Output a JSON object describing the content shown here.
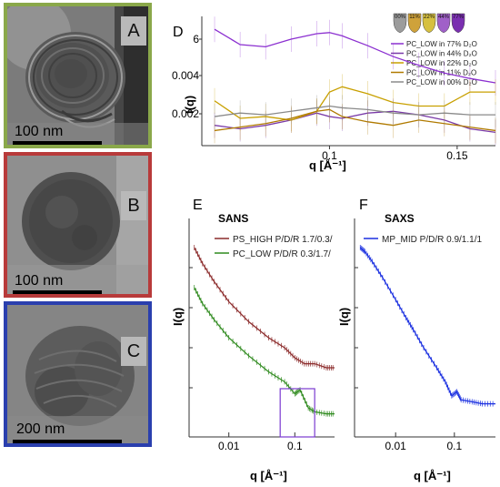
{
  "panels": {
    "A": {
      "letter": "A",
      "scale": "100 nm",
      "border_color": "#8aa84a"
    },
    "B": {
      "letter": "B",
      "scale": "100 nm",
      "border_color": "#b83a3a"
    },
    "C": {
      "letter": "C",
      "scale": "200 nm",
      "border_color": "#2a3fae"
    }
  },
  "figure_letters": {
    "D": "D",
    "E": "E",
    "F": "F"
  },
  "plot_text": {
    "D_ylabel": "I(q)",
    "D_xlabel": "q [Å⁻¹]",
    "E_title": "SANS",
    "F_title": "SAXS",
    "E_ylabel": "I(q)",
    "F_ylabel": "I(q)",
    "E_xlabel": "q [Å⁻¹]",
    "F_xlabel": "q [Å⁻¹]"
  },
  "chart_data": [
    {
      "id": "D",
      "type": "line",
      "x": [
        0.055,
        0.065,
        0.075,
        0.085,
        0.095,
        0.1,
        0.105,
        0.115,
        0.125,
        0.135,
        0.145,
        0.155,
        0.165
      ],
      "xticks": [
        0.1,
        0.15
      ],
      "yticks_labels": [
        "0.002",
        "0.004",
        "6"
      ],
      "xlim": [
        0.05,
        0.165
      ],
      "legend": {
        "position": "top-right",
        "icon_labels": [
          "00%",
          "11%",
          "22%",
          "44%",
          "77%"
        ]
      },
      "series": [
        {
          "name": "PC_LOW in 77% D₂O",
          "color": "#8b2fd0",
          "values": [
            6.9,
            5.5,
            5.3,
            6.0,
            6.5,
            6.6,
            6.3,
            5.4,
            4.4,
            3.6,
            2.9,
            2.4,
            2.0
          ]
        },
        {
          "name": "PC_LOW in 44% D₂O",
          "color": "#7a3aa8",
          "values": [
            0.0009,
            0.0007,
            0.0009,
            0.0012,
            0.0016,
            0.0014,
            0.0013,
            0.0016,
            0.0017,
            0.0015,
            0.0012,
            0.0007,
            0.0005
          ]
        },
        {
          "name": "PC_LOW in 22% D₂O",
          "color": "#c8a000",
          "values": [
            0.0023,
            0.0013,
            0.0014,
            0.0012,
            0.0017,
            0.0028,
            0.0031,
            0.0027,
            0.0022,
            0.002,
            0.002,
            0.0028,
            0.0028
          ]
        },
        {
          "name": "PC_LOW in 11% D₂O",
          "color": "#b07a00",
          "values": [
            0.0006,
            0.0008,
            0.001,
            0.0013,
            0.0017,
            0.0018,
            0.0014,
            0.0011,
            0.0009,
            0.0012,
            0.001,
            0.0008,
            0.0006
          ]
        },
        {
          "name": "PC_LOW in 00% D₂O",
          "color": "#8a8a8a",
          "values": [
            0.0014,
            0.0016,
            0.0015,
            0.0017,
            0.0019,
            0.002,
            0.0019,
            0.0018,
            0.0016,
            0.0015,
            0.0016,
            0.0015,
            0.0015
          ]
        }
      ]
    },
    {
      "id": "E",
      "type": "line",
      "title": "SANS",
      "xscale": "log",
      "xlim": [
        0.0025,
        0.4
      ],
      "xticks": [
        0.01,
        0.1
      ],
      "series": [
        {
          "name": "PS_HIGH P/D/R 1.7/0.3/",
          "color": "#8b2a2a",
          "x": [
            0.003,
            0.004,
            0.006,
            0.01,
            0.02,
            0.04,
            0.07,
            0.1,
            0.14,
            0.2,
            0.3,
            0.4
          ],
          "values": [
            9.0,
            8.2,
            7.3,
            6.3,
            5.3,
            4.5,
            4.0,
            3.5,
            3.2,
            3.2,
            3.0,
            3.0
          ]
        },
        {
          "name": "PC_LOW P/D/R 0.3/1.7/",
          "color": "#2f8a1e",
          "x": [
            0.003,
            0.004,
            0.006,
            0.01,
            0.02,
            0.04,
            0.07,
            0.1,
            0.12,
            0.16,
            0.2,
            0.3,
            0.4
          ],
          "values": [
            7.0,
            6.2,
            5.4,
            4.5,
            3.6,
            2.8,
            2.3,
            1.7,
            1.9,
            1.0,
            0.8,
            0.7,
            0.7
          ]
        }
      ]
    },
    {
      "id": "F",
      "type": "line",
      "title": "SAXS",
      "xscale": "log",
      "xlim": [
        0.002,
        0.5
      ],
      "xticks": [
        0.01,
        0.1
      ],
      "series": [
        {
          "name": "MP_MID P/D/R 0.9/1.1/1",
          "color": "#1a2fe0",
          "x": [
            0.0025,
            0.003,
            0.004,
            0.006,
            0.01,
            0.015,
            0.02,
            0.03,
            0.05,
            0.07,
            0.09,
            0.11,
            0.13,
            0.2,
            0.3,
            0.5
          ],
          "values": [
            9.0,
            8.8,
            8.3,
            7.5,
            6.4,
            5.5,
            4.9,
            4.0,
            3.0,
            2.3,
            1.6,
            1.8,
            1.4,
            1.3,
            1.2,
            1.2
          ]
        }
      ]
    }
  ]
}
